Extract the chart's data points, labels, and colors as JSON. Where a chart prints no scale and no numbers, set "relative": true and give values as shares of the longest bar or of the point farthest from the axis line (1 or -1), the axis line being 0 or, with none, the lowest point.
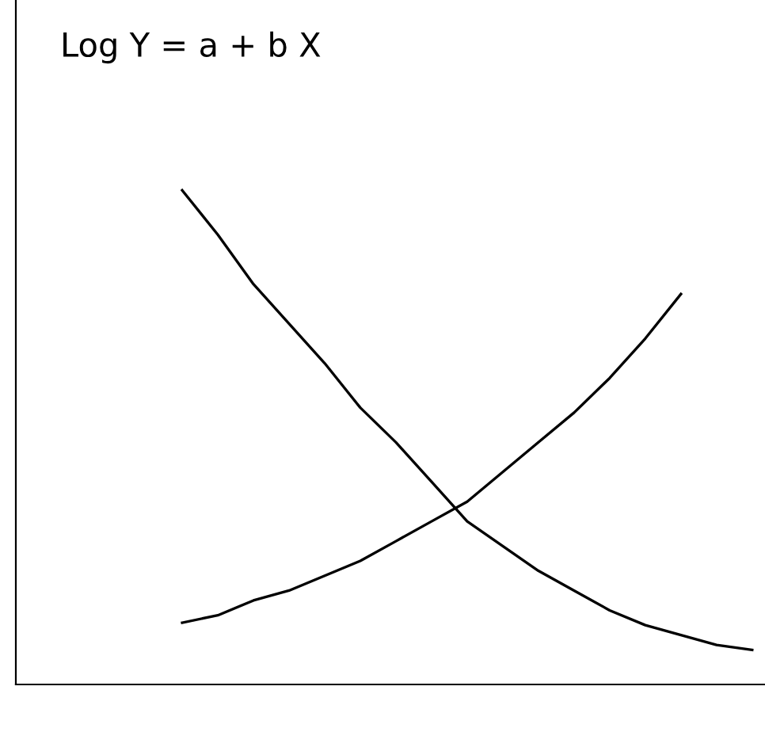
{
  "chart_data": {
    "type": "line",
    "title": "Log Y = a + b X",
    "relative": true,
    "grid": false,
    "marker": "none",
    "line_style": "solid",
    "categories": [
      null,
      null,
      null,
      null,
      null,
      null,
      null,
      null,
      null,
      null,
      null,
      null,
      null,
      null,
      null,
      null,
      null
    ],
    "series": [
      {
        "color": "#000000",
        "values": [
          1.0,
          0.91,
          0.81,
          0.73,
          0.65,
          0.56,
          0.49,
          0.41,
          0.33,
          0.28,
          0.23,
          0.19,
          0.15,
          0.12,
          0.1,
          0.08,
          0.07
        ]
      },
      {
        "color": "#000000",
        "values": [
          0.125,
          0.14,
          0.17,
          0.19,
          0.22,
          0.25,
          0.29,
          0.33,
          0.37,
          0.43,
          0.49,
          0.55,
          0.62,
          0.7,
          0.79,
          null,
          null
        ]
      }
    ]
  }
}
